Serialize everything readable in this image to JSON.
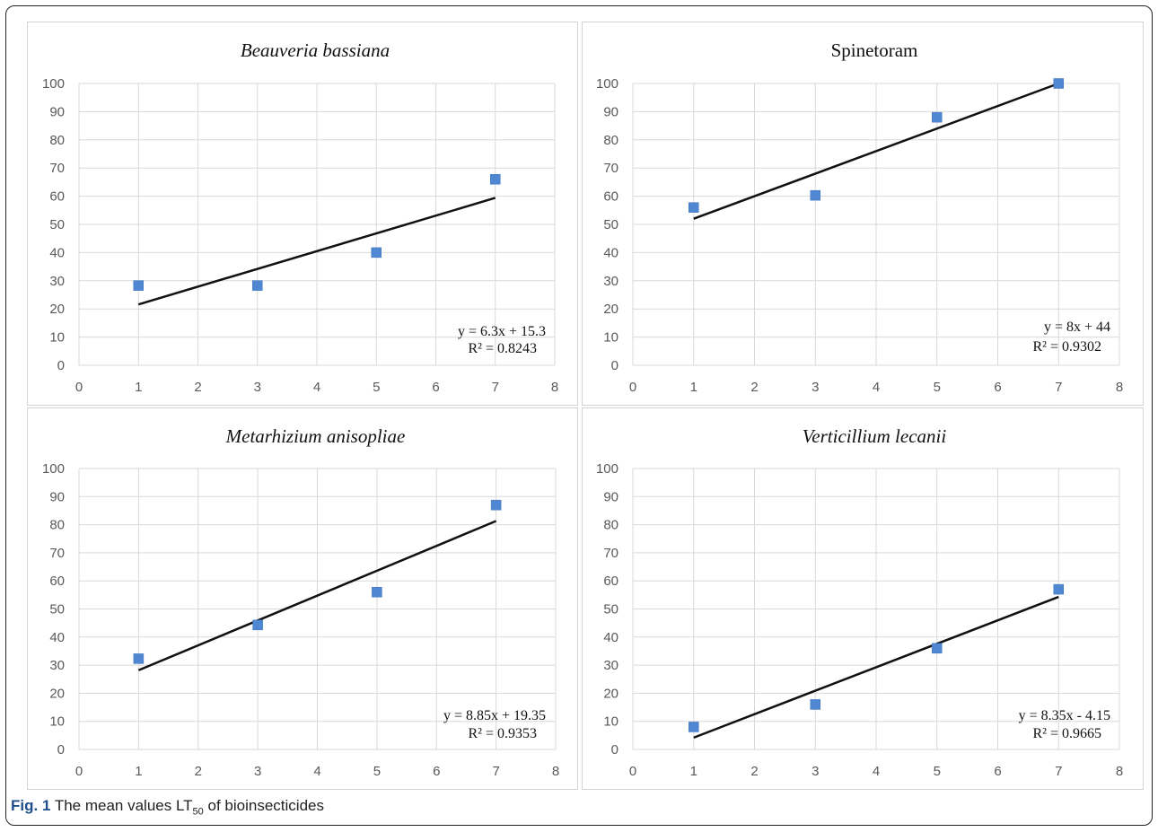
{
  "figure": {
    "caption_label": "Fig. 1",
    "caption_prefix": "The mean values LT",
    "caption_sub": "50",
    "caption_suffix": "of bioinsecticides"
  },
  "colors": {
    "marker": "#4f87d2",
    "trendline": "#111111",
    "grid": "#d9d9d9",
    "axis_text": "#595959"
  },
  "chart_data": [
    {
      "type": "scatter",
      "title": "Beauveria bassiana",
      "title_italic": true,
      "xlim": [
        0,
        8
      ],
      "ylim": [
        0,
        100
      ],
      "xticks": [
        "0",
        "1",
        "2",
        "3",
        "4",
        "5",
        "6",
        "7",
        "8"
      ],
      "yticks": [
        "0",
        "10",
        "20",
        "30",
        "40",
        "50",
        "60",
        "70",
        "80",
        "90",
        "100"
      ],
      "x": [
        1,
        3,
        5,
        7
      ],
      "y": [
        28.3,
        28.3,
        40,
        66
      ],
      "trendline": {
        "slope": 6.3,
        "intercept": 15.3
      },
      "equation": "y = 6.3x + 15.3",
      "r2_label": "R² = 0.8243",
      "grid": true
    },
    {
      "type": "scatter",
      "title": "Spinetoram",
      "title_italic": false,
      "xlim": [
        0,
        8
      ],
      "ylim": [
        0,
        100
      ],
      "xticks": [
        "0",
        "1",
        "2",
        "3",
        "4",
        "5",
        "6",
        "7",
        "8"
      ],
      "yticks": [
        "0",
        "10",
        "20",
        "30",
        "40",
        "50",
        "60",
        "70",
        "80",
        "90",
        "100"
      ],
      "x": [
        1,
        3,
        5,
        7
      ],
      "y": [
        56,
        60.3,
        88,
        100
      ],
      "trendline": {
        "slope": 8,
        "intercept": 44
      },
      "equation": "y = 8x + 44",
      "r2_label": "R² = 0.9302",
      "grid": true
    },
    {
      "type": "scatter",
      "title": "Metarhizium anisopliae",
      "title_italic": true,
      "xlim": [
        0,
        8
      ],
      "ylim": [
        0,
        100
      ],
      "xticks": [
        "0",
        "1",
        "2",
        "3",
        "4",
        "5",
        "6",
        "7",
        "8"
      ],
      "yticks": [
        "0",
        "10",
        "20",
        "30",
        "40",
        "50",
        "60",
        "70",
        "80",
        "90",
        "100"
      ],
      "x": [
        1,
        3,
        5,
        7
      ],
      "y": [
        32.3,
        44.3,
        56,
        87
      ],
      "trendline": {
        "slope": 8.85,
        "intercept": 19.35
      },
      "equation": "y = 8.85x + 19.35",
      "r2_label": "R² = 0.9353",
      "grid": true
    },
    {
      "type": "scatter",
      "title": "Verticillium lecanii",
      "title_italic": true,
      "xlim": [
        0,
        8
      ],
      "ylim": [
        0,
        100
      ],
      "xticks": [
        "0",
        "1",
        "2",
        "3",
        "4",
        "5",
        "6",
        "7",
        "8"
      ],
      "yticks": [
        "0",
        "10",
        "20",
        "30",
        "40",
        "50",
        "60",
        "70",
        "80",
        "90",
        "100"
      ],
      "x": [
        1,
        3,
        5,
        7
      ],
      "y": [
        8,
        16,
        36,
        57
      ],
      "trendline": {
        "slope": 8.35,
        "intercept": -4.15
      },
      "equation": "y = 8.35x - 4.15",
      "r2_label": "R² = 0.9665",
      "grid": true
    }
  ]
}
